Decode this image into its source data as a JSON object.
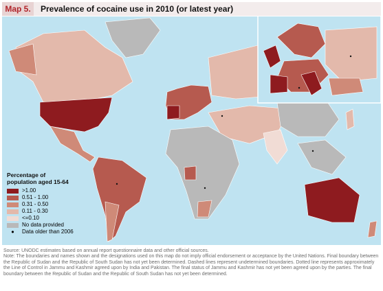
{
  "header": {
    "label": "Map 5.",
    "title": "Prevalence of cocaine use in 2010 (or latest year)"
  },
  "legend": {
    "title": "Percentage of population aged 15-64",
    "items": [
      {
        "label": ">1.00",
        "color": "#8e1b1f"
      },
      {
        "label": "0.51 - 1.00",
        "color": "#b65a4f"
      },
      {
        "label": "0.31 - 0.50",
        "color": "#cf8a78"
      },
      {
        "label": "0.11 - 0.30",
        "color": "#e3b9ab"
      },
      {
        "label": "<=0.10",
        "color": "#f1dcd5"
      },
      {
        "label": "No data provided",
        "color": "#b9b9b9"
      }
    ],
    "dot_label": "Data older than 2006"
  },
  "source": "Source: UNODC estimates based on annual report questionnaire data and other official sources.",
  "note": "Note: The boundaries and names shown and the designations used on this map do not imply official endorsement or acceptance by the United Nations. Final boundary between the Republic of Sudan and the Republic of South Sudan has not yet been determined. Dashed lines represent undetermined boundaries. Dotted line represents approximately the Line of Control in Jammu and Kashmir agreed upon by India and Pakistan. The final status of Jammu and Kashmir has not yet been agreed upon by the parties. The final boundary between the Republic of Sudan and the Republic of South Sudan has not yet been determined."
}
